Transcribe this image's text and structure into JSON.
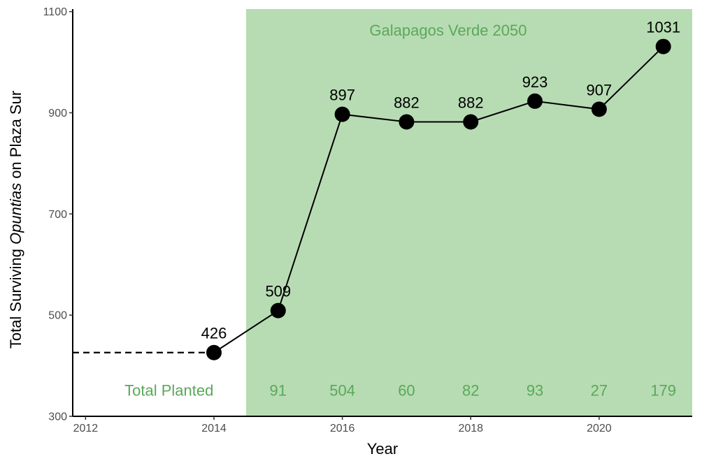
{
  "chart_data": {
    "type": "line",
    "xlabel": "Year",
    "ylabel_parts": [
      "Total Surviving ",
      "Opuntias",
      " on Plaza Sur"
    ],
    "xlim": [
      2011.8,
      2021.45
    ],
    "ylim": [
      300,
      1105
    ],
    "x_ticks": [
      2012,
      2014,
      2016,
      2018,
      2020
    ],
    "y_ticks": [
      300,
      500,
      700,
      900,
      1100
    ],
    "grid": false,
    "series": [
      {
        "x": [
          2014,
          2015,
          2016,
          2017,
          2018,
          2019,
          2020,
          2021
        ],
        "values": [
          426,
          509,
          897,
          882,
          882,
          923,
          907,
          1031
        ],
        "labels": [
          "426",
          "509",
          "897",
          "882",
          "882",
          "923",
          "907",
          "1031"
        ]
      }
    ],
    "baseline": {
      "value": 426,
      "from_x": 2011.8,
      "to_x": 2014,
      "style": "dashed"
    },
    "shaded_region": {
      "from_x": 2014.5,
      "to_x": 2021.45,
      "label": "Galapagos Verde 2050",
      "color": "#b7dcb3"
    },
    "planted": {
      "label": "Total Planted",
      "label_x": 2013.3,
      "y": 352,
      "x": [
        2015,
        2016,
        2017,
        2018,
        2019,
        2020,
        2021
      ],
      "values": [
        "91",
        "504",
        "60",
        "82",
        "93",
        "27",
        "179"
      ]
    },
    "colors": {
      "region": "#b7dcb3",
      "region_text": "#5aa85a",
      "line": "#000000",
      "point": "#000000"
    }
  }
}
